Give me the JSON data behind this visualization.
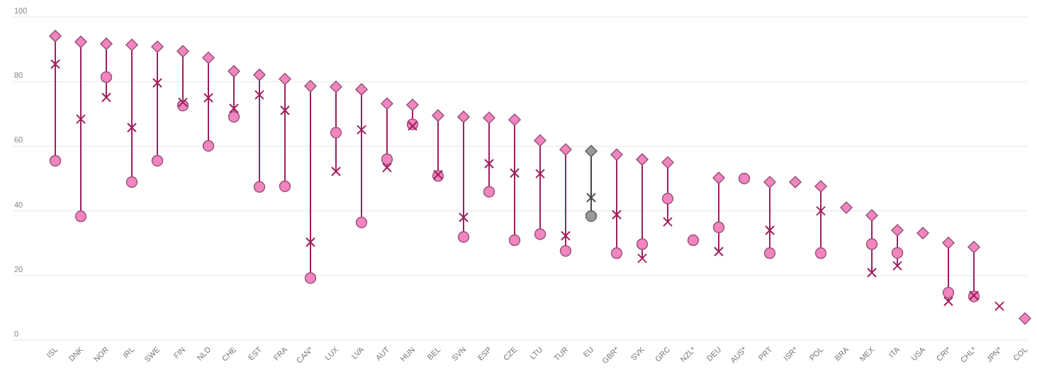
{
  "chart_data": {
    "type": "scatter",
    "categories": [
      "ISL",
      "DNK",
      "NOR",
      "IRL",
      "SWE",
      "FIN",
      "NLD",
      "CHE",
      "EST",
      "FRA",
      "CAN*",
      "LUX",
      "LVA",
      "AUT",
      "HUN",
      "BEL",
      "SVN",
      "ESP",
      "CZE",
      "LTU",
      "TUR",
      "EU",
      "GBR*",
      "SVK",
      "GRC",
      "NZL*",
      "DEU",
      "AUS*",
      "PRT",
      "ISR*",
      "POL",
      "BRA",
      "MEX",
      "ITA",
      "USA",
      "CRI*",
      "CHL*",
      "JPN*",
      "COL"
    ],
    "series": [
      {
        "marker": "diamond",
        "colors": [
          "#f285c0",
          "#f285c0",
          "#f285c0",
          "#f285c0",
          "#f285c0",
          "#f285c0",
          "#f285c0",
          "#f285c0",
          "#f285c0",
          "#f285c0",
          "#f285c0",
          "#f285c0",
          "#f285c0",
          "#f285c0",
          "#f285c0",
          "#f285c0",
          "#f285c0",
          "#f285c0",
          "#f285c0",
          "#f285c0",
          "#f285c0",
          "#999999",
          "#f285c0",
          "#f285c0",
          "#f285c0",
          null,
          "#f285c0",
          null,
          "#f285c0",
          "#f285c0",
          "#f285c0",
          "#f285c0",
          "#f285c0",
          "#f285c0",
          "#f285c0",
          "#f285c0",
          "#f285c0",
          null,
          "#f285c0"
        ],
        "values": [
          94.1,
          92.3,
          91.7,
          91.4,
          90.8,
          89.4,
          87.4,
          83.2,
          82.1,
          80.8,
          78.6,
          78.4,
          77.6,
          73.2,
          72.8,
          69.5,
          69.1,
          68.8,
          68.2,
          61.8,
          59.0,
          58.5,
          57.4,
          55.9,
          55.0,
          null,
          50.2,
          null,
          48.9,
          48.9,
          47.6,
          41.0,
          38.6,
          34.0,
          33.1,
          30.1,
          28.8,
          null,
          6.7
        ]
      },
      {
        "marker": "cross",
        "colors": [
          "#9e1f5c",
          "#9e1f5c",
          "#9e1f5c",
          "#9e1f5c",
          "#9e1f5c",
          "#9e1f5c",
          "#9e1f5c",
          "#9e1f5c",
          "#9e1f5c",
          "#9e1f5c",
          "#9e1f5c",
          "#9e1f5c",
          "#9e1f5c",
          "#9e1f5c",
          "#9e1f5c",
          "#9e1f5c",
          "#9e1f5c",
          "#9e1f5c",
          "#9e1f5c",
          "#9e1f5c",
          "#9e1f5c",
          "#444444",
          "#9e1f5c",
          "#9e1f5c",
          "#9e1f5c",
          null,
          "#9e1f5c",
          null,
          "#9e1f5c",
          null,
          "#9e1f5c",
          null,
          "#9e1f5c",
          "#9e1f5c",
          null,
          "#9e1f5c",
          "#9e1f5c",
          "#9e1f5c",
          null
        ],
        "values": [
          85.4,
          68.4,
          75.1,
          65.8,
          79.6,
          73.6,
          75.0,
          71.7,
          75.9,
          71.1,
          30.3,
          52.2,
          65.1,
          53.4,
          66.3,
          51.2,
          38.0,
          54.6,
          51.7,
          51.5,
          32.3,
          44.1,
          38.8,
          25.3,
          36.6,
          null,
          27.4,
          null,
          34.0,
          null,
          40.0,
          null,
          20.9,
          23.0,
          null,
          12.0,
          13.8,
          10.5,
          null
        ]
      },
      {
        "marker": "circle",
        "colors": [
          "#f285c0",
          "#f285c0",
          "#f285c0",
          "#f285c0",
          "#f285c0",
          "#f285c0",
          "#f285c0",
          "#f285c0",
          "#f285c0",
          "#f285c0",
          "#f285c0",
          "#f285c0",
          "#f285c0",
          "#f285c0",
          "#f285c0",
          "#f285c0",
          "#f285c0",
          "#f285c0",
          "#f285c0",
          "#f285c0",
          "#f285c0",
          "#999999",
          "#f285c0",
          "#f285c0",
          "#f285c0",
          "#f285c0",
          "#f285c0",
          "#f285c0",
          "#f285c0",
          null,
          "#f285c0",
          null,
          "#f285c0",
          "#f285c0",
          null,
          "#f285c0",
          "#f285c0",
          null,
          null
        ],
        "values": [
          55.5,
          38.3,
          81.4,
          48.9,
          55.5,
          72.6,
          60.1,
          69.1,
          47.4,
          47.6,
          19.2,
          64.2,
          36.4,
          56.0,
          66.8,
          50.8,
          31.9,
          45.9,
          30.9,
          32.8,
          27.6,
          38.4,
          26.9,
          29.7,
          43.8,
          30.9,
          34.9,
          50.0,
          26.9,
          null,
          26.9,
          null,
          29.7,
          27.0,
          null,
          14.7,
          13.5,
          null,
          null
        ]
      }
    ],
    "ylim": [
      0,
      100
    ],
    "yticks": [
      0,
      20,
      40,
      60,
      80,
      100
    ],
    "grid": "y"
  }
}
